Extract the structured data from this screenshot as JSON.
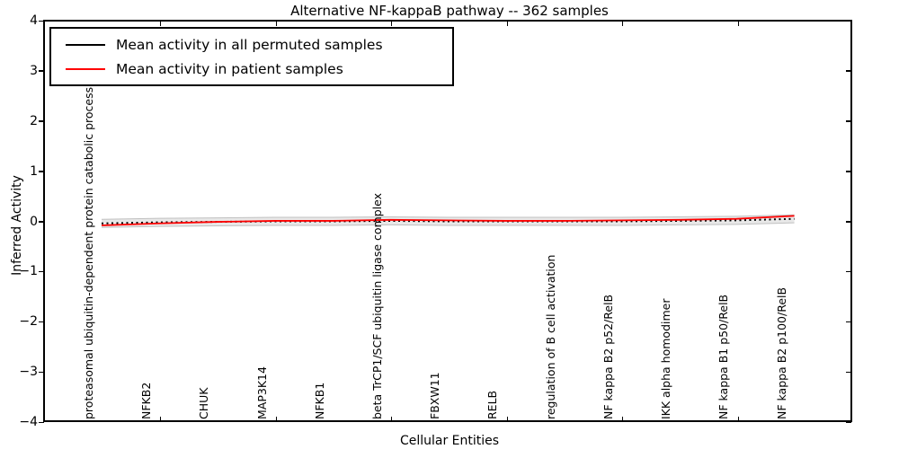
{
  "title": "Alternative NF-kappaB pathway -- 362 samples",
  "legend": {
    "items": [
      {
        "label": "Mean activity in all permuted samples",
        "color": "#000000"
      },
      {
        "label": "Mean activity in patient samples",
        "color": "#ff0000"
      }
    ]
  },
  "axes": {
    "ylabel": "Inferred Activity",
    "xlabel": "Cellular Entities",
    "ytick_labels": [
      "4",
      "3",
      "2",
      "1",
      "0",
      "−1",
      "−2",
      "−3",
      "−4"
    ]
  },
  "chart_data": {
    "type": "line",
    "title": "Alternative NF-kappaB pathway -- 362 samples",
    "xlabel": "Cellular Entities",
    "ylabel": "Inferred Activity",
    "ylim": [
      -4,
      4
    ],
    "yticks": [
      4,
      3,
      2,
      1,
      0,
      -1,
      -2,
      -3,
      -4
    ],
    "grid": false,
    "legend_position": "upper left",
    "categories": [
      "proteasomal ubiquitin-dependent protein catabolic process",
      "NFKB2",
      "CHUK",
      "MAP3K14",
      "NFKB1",
      "beta TrCP1/SCF ubiquitin ligase complex",
      "FBXW11",
      "RELB",
      "regulation of B cell activation",
      "NF kappa B2 p52/RelB",
      "IKK alpha homodimer",
      "NF kappa B1 p50/RelB",
      "NF kappa B2 p100/RelB"
    ],
    "series": [
      {
        "name": "Mean activity in all permuted samples",
        "color": "#000000",
        "style": "dotted",
        "values": [
          -0.04,
          -0.02,
          -0.01,
          0.0,
          0.0,
          0.01,
          0.0,
          0.0,
          0.0,
          0.0,
          0.01,
          0.02,
          0.05
        ]
      },
      {
        "name": "Mean activity in patient samples",
        "color": "#ff0000",
        "style": "solid",
        "values": [
          -0.08,
          -0.04,
          -0.01,
          0.01,
          0.01,
          0.03,
          0.02,
          0.01,
          0.01,
          0.02,
          0.03,
          0.05,
          0.11
        ]
      }
    ],
    "band": {
      "name": "permuted-sample spread (unlabeled gray envelope)",
      "color": "#e8e8e8",
      "edge_color": "#c0c0c0",
      "upper": [
        0.04,
        0.06,
        0.07,
        0.08,
        0.08,
        0.09,
        0.08,
        0.08,
        0.08,
        0.08,
        0.09,
        0.1,
        0.13
      ],
      "lower": [
        -0.12,
        -0.1,
        -0.09,
        -0.08,
        -0.08,
        -0.07,
        -0.08,
        -0.08,
        -0.08,
        -0.08,
        -0.07,
        -0.06,
        -0.03
      ]
    }
  }
}
